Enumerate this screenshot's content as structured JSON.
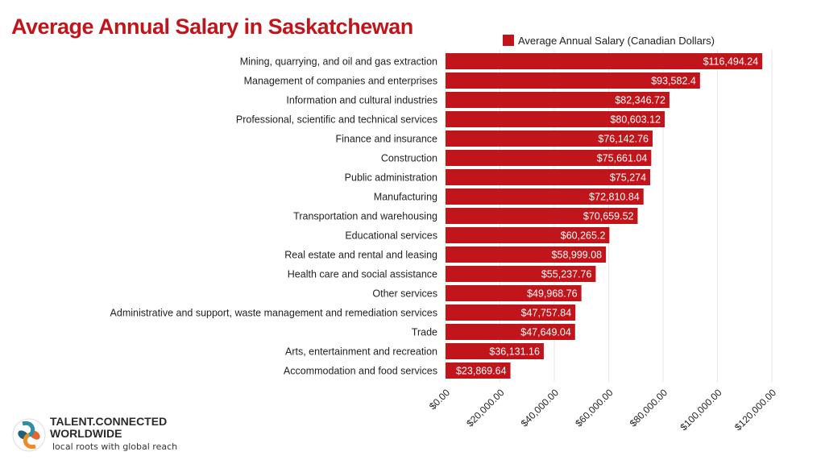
{
  "chart_data": {
    "type": "bar",
    "orientation": "horizontal",
    "title": "Average Annual Salary in Saskatchewan",
    "categories": [
      "Mining, quarrying, and oil and gas extraction",
      "Management of companies and enterprises",
      "Information and cultural industries",
      "Professional, scientific and technical services",
      "Finance and insurance",
      "Construction",
      "Public administration",
      "Manufacturing",
      "Transportation and warehousing",
      "Educational services",
      "Real estate and rental and leasing",
      "Health care and social assistance",
      "Other services",
      "Administrative and support, waste management and remediation services",
      "Trade",
      "Arts, entertainment and recreation",
      "Accommodation and food services"
    ],
    "series": [
      {
        "name": "Average Annual Salary (Canadian Dollars)",
        "values": [
          116494.24,
          93582.4,
          82346.72,
          80603.12,
          76142.76,
          75661.04,
          75274,
          72810.84,
          70659.52,
          60265.2,
          58999.08,
          55237.76,
          49968.76,
          47757.84,
          47649.04,
          36131.16,
          23869.64
        ],
        "data_labels": [
          "$116,494.24",
          "$93,582.4",
          "$82,346.72",
          "$80,603.12",
          "$76,142.76",
          "$75,661.04",
          "$75,274",
          "$72,810.84",
          "$70,659.52",
          "$60,265.2",
          "$58,999.08",
          "$55,237.76",
          "$49,968.76",
          "$47,757.84",
          "$47,649.04",
          "$36,131.16",
          "$23,869.64"
        ],
        "color": "#c0161b"
      }
    ],
    "xlim": [
      0,
      120000
    ],
    "x_ticks": [
      0,
      20000,
      40000,
      60000,
      80000,
      100000,
      120000
    ],
    "x_tick_labels": [
      "$0.00",
      "$20,000.00",
      "$40,000.00",
      "$60,000.00",
      "$80,000.00",
      "$100,000.00",
      "$120,000.00"
    ],
    "grid": "vertical",
    "legend": "top"
  },
  "logo": {
    "line1": "TALENT.CONNECTED",
    "line2": "WORLDWIDE",
    "tagline": "local roots with global reach"
  }
}
